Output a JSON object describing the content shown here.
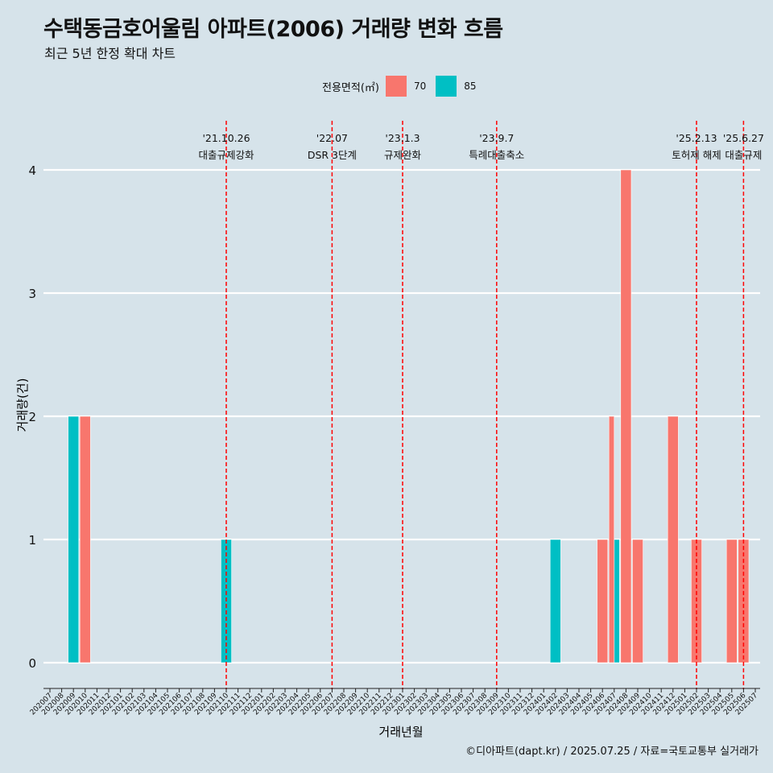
{
  "title": "수택동금호어울림 아파트(2006) 거래량 변화 흐름",
  "subtitle": "최근 5년 한정 확대 차트",
  "caption": "©디아파트(dapt.kr) / 2025.07.25 / 자료=국토교통부 실거래가",
  "legend": {
    "title": "전용면적(㎡)",
    "items": [
      {
        "label": "70",
        "color": "#F8766D"
      },
      {
        "label": "85",
        "color": "#00BFC4"
      }
    ]
  },
  "colors": {
    "background": "#d6e3ea",
    "grid": "#ffffff",
    "event_line": "#ff0000"
  },
  "chart_data": {
    "type": "bar",
    "xlabel": "거래년월",
    "ylabel": "거래량(건)",
    "ylim": [
      0,
      4
    ],
    "yticks": [
      0,
      1,
      2,
      3,
      4
    ],
    "categories": [
      "202007",
      "202008",
      "202009",
      "202010",
      "202011",
      "202012",
      "202101",
      "202102",
      "202103",
      "202104",
      "202105",
      "202106",
      "202107",
      "202108",
      "202109",
      "202110",
      "202111",
      "202112",
      "202201",
      "202202",
      "202203",
      "202204",
      "202205",
      "202206",
      "202207",
      "202208",
      "202209",
      "202210",
      "202211",
      "202212",
      "202301",
      "202302",
      "202303",
      "202304",
      "202305",
      "202306",
      "202307",
      "202308",
      "202309",
      "202310",
      "202311",
      "202312",
      "202401",
      "202402",
      "202403",
      "202404",
      "202405",
      "202406",
      "202407",
      "202408",
      "202409",
      "202410",
      "202411",
      "202412",
      "202501",
      "202502",
      "202503",
      "202504",
      "202505",
      "202506",
      "202507"
    ],
    "series": [
      {
        "name": "70",
        "color": "#F8766D",
        "points": [
          {
            "x": "202010",
            "y": 2
          },
          {
            "x": "202406",
            "y": 1
          },
          {
            "x": "202407",
            "y": 2
          },
          {
            "x": "202408",
            "y": 4
          },
          {
            "x": "202409",
            "y": 1
          },
          {
            "x": "202412",
            "y": 2
          },
          {
            "x": "202502",
            "y": 1
          },
          {
            "x": "202505",
            "y": 1
          },
          {
            "x": "202506",
            "y": 1
          }
        ]
      },
      {
        "name": "85",
        "color": "#00BFC4",
        "points": [
          {
            "x": "202009",
            "y": 2
          },
          {
            "x": "202110",
            "y": 1
          },
          {
            "x": "202402",
            "y": 1
          },
          {
            "x": "202407",
            "y": 1
          }
        ]
      }
    ],
    "annotations": [
      {
        "x": "202110",
        "date": "'21.10.26",
        "label": "대출규제강화"
      },
      {
        "x": "202207",
        "date": "'22.07",
        "label": "DSR 3단계"
      },
      {
        "x": "202301",
        "date": "'23.1.3",
        "label": "규제완화"
      },
      {
        "x": "202309",
        "date": "'23.9.7",
        "label": "특례대출축소"
      },
      {
        "x": "202502",
        "date": "'25.2.13",
        "label": "토허제 해제"
      },
      {
        "x": "202506",
        "date": "'25.6.27",
        "label": "대출규제"
      }
    ]
  }
}
